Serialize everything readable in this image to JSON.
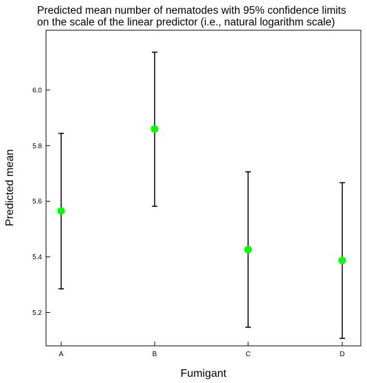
{
  "chart_data": {
    "type": "scatter",
    "title_lines": [
      "Predicted mean number of nematodes with 95% confidence limits",
      "on the scale of the linear predictor (i.e., natural logarithm scale)"
    ],
    "xlabel": "Fumigant",
    "ylabel": "Predicted mean",
    "categories": [
      "A",
      "B",
      "C",
      "D"
    ],
    "series": [
      {
        "values": [
          5.565,
          5.86,
          5.426,
          5.387
        ],
        "lower": [
          5.285,
          5.582,
          5.147,
          5.107
        ],
        "upper": [
          5.844,
          6.136,
          5.706,
          5.667
        ],
        "color": "#00ff00"
      }
    ],
    "ylim": [
      5.08,
      6.215
    ],
    "yticks": [
      5.2,
      5.4,
      5.6,
      5.8,
      6.0
    ],
    "ytick_labels": [
      "5.2",
      "5.4",
      "5.6",
      "5.8",
      "6.0"
    ],
    "grid": false,
    "legend": "none",
    "marker_color": "#00ff00",
    "errorbar_color": "#000000"
  }
}
